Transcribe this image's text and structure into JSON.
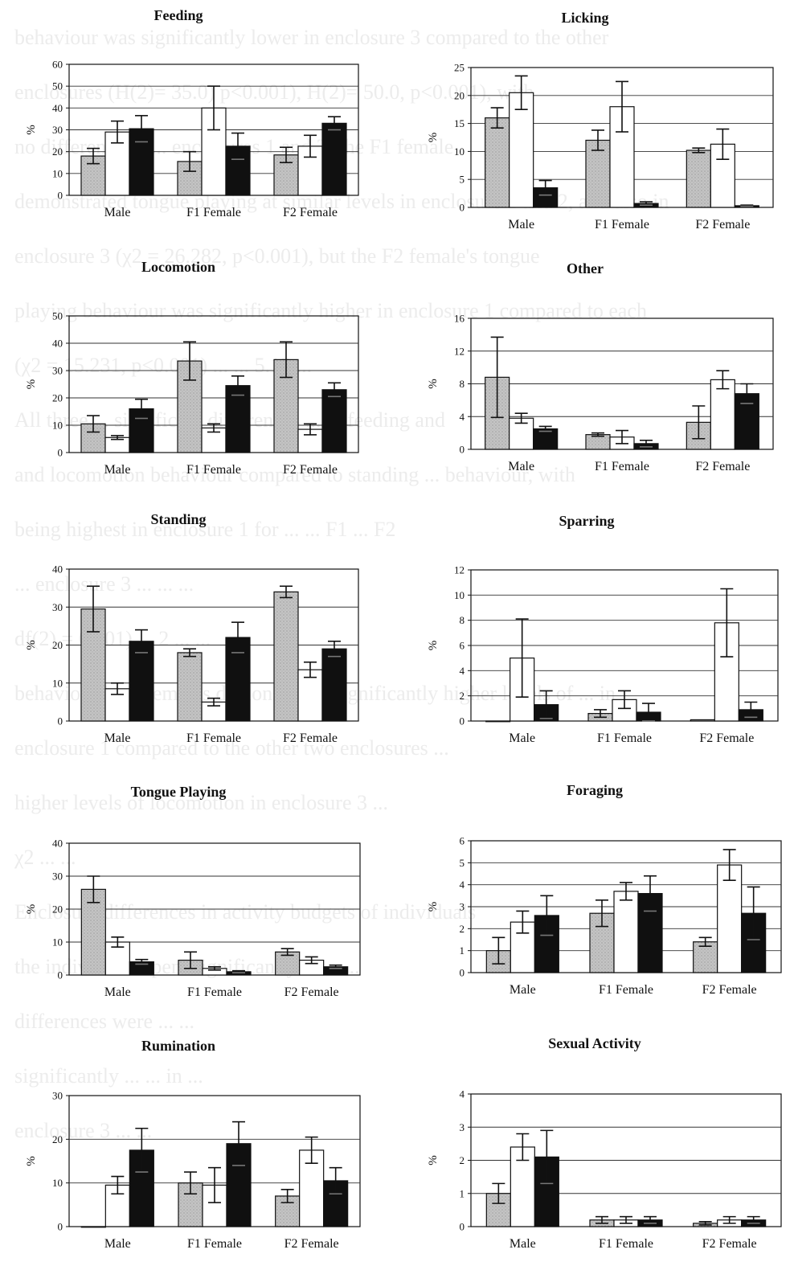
{
  "background_text": [
    "behaviour was significantly lower in enclosure 3 compared to the other",
    "enclosures (H(2)= 35.0) p<0.001), H(2)= 50.0, p<0.001), with",
    "no difference ... ... enclosures 1 and 2 The F1 female",
    "demonstrated tongue playing at similar levels in enclosure 1 and 2, and also in",
    "enclosure 3 (χ2 = 26.282, p<0.001), but the F2 female's tongue",
    "playing behaviour was significantly higher in enclosure 1 compared to each",
    "(χ2 = 15.231, p<0.001) ... ... 5.13 ...",
    "All three ... significant differences ... ... feeding and",
    "and locomotion behaviour compared to standing ... behaviour, with",
    "being highest in enclosure 1 for ... ... F1 ... F2",
    "... enclosure 3 ... ... ...",
    "df(2) = 0.001) ... 2 ... ...",
    "behaviour both females demonstrated significantly higher levels of ... in",
    "enclosure 1 compared to the other two enclosures ...",
    "higher levels of locomotion in enclosure 3 ...",
    "χ2 ... ...",
    "Enclosure differences in activity budgets of individuals",
    "the individuals spent significantly ... ... ...",
    "differences were ... ...",
    "significantly ... ... in ...",
    "enclosure 3 ... ..."
  ],
  "colors": {
    "enclosure1": "#c4c4c4",
    "enclosure2": "#ffffff",
    "enclosure3": "#101010",
    "axis": "#111111",
    "grid": "#333333"
  },
  "chart_data": [
    {
      "type": "bar",
      "title": "Feeding",
      "ylabel": "%",
      "ylim": [
        0,
        60
      ],
      "yticks": [
        0,
        10,
        20,
        30,
        40,
        50,
        60
      ],
      "grid": true,
      "categories": [
        "Male",
        "F1 Female",
        "F2 Female"
      ],
      "series": [
        {
          "values": [
            18,
            15.5,
            18.5
          ],
          "errors": [
            3.5,
            4.5,
            3.5
          ]
        },
        {
          "values": [
            29,
            40,
            22.5
          ],
          "errors": [
            5,
            10,
            5
          ]
        },
        {
          "values": [
            30.5,
            22.5,
            33
          ],
          "errors": [
            6,
            6,
            3
          ]
        }
      ]
    },
    {
      "type": "bar",
      "title": "Licking",
      "ylabel": "%",
      "ylim": [
        0,
        25
      ],
      "yticks": [
        0,
        5,
        10,
        15,
        20,
        25
      ],
      "grid": true,
      "categories": [
        "Male",
        "F1 Female",
        "F2 Female"
      ],
      "series": [
        {
          "values": [
            16,
            12,
            10.2
          ],
          "errors": [
            1.8,
            1.8,
            0.4
          ]
        },
        {
          "values": [
            20.5,
            18,
            11.3
          ],
          "errors": [
            3,
            4.5,
            2.7
          ]
        },
        {
          "values": [
            3.5,
            0.7,
            0.3
          ],
          "errors": [
            1.3,
            0.3,
            0.1
          ]
        }
      ]
    },
    {
      "type": "bar",
      "title": "Locomotion",
      "ylabel": "%",
      "ylim": [
        0,
        50
      ],
      "yticks": [
        0,
        10,
        20,
        30,
        40,
        50
      ],
      "grid": true,
      "categories": [
        "Male",
        "F1 Female",
        "F2 Female"
      ],
      "series": [
        {
          "values": [
            10.5,
            33.5,
            34
          ],
          "errors": [
            3,
            7,
            6.5
          ]
        },
        {
          "values": [
            5.5,
            9,
            8.5
          ],
          "errors": [
            0.7,
            1.5,
            2
          ]
        },
        {
          "values": [
            16,
            24.5,
            23
          ],
          "errors": [
            3.5,
            3.5,
            2.5
          ]
        }
      ]
    },
    {
      "type": "bar",
      "title": "Other",
      "ylabel": "%",
      "ylim": [
        0,
        16
      ],
      "yticks": [
        0,
        4,
        8,
        12,
        16
      ],
      "grid": true,
      "categories": [
        "Male",
        "F1 Female",
        "F2 Female"
      ],
      "series": [
        {
          "values": [
            8.8,
            1.8,
            3.3
          ],
          "errors": [
            4.9,
            0.2,
            2
          ]
        },
        {
          "values": [
            3.8,
            1.5,
            8.5
          ],
          "errors": [
            0.6,
            0.8,
            1.1
          ]
        },
        {
          "values": [
            2.5,
            0.7,
            6.8
          ],
          "errors": [
            0.3,
            0.4,
            1.2
          ]
        }
      ]
    },
    {
      "type": "bar",
      "title": "Standing",
      "ylabel": "%",
      "ylim": [
        0,
        40
      ],
      "yticks": [
        0,
        10,
        20,
        30,
        40
      ],
      "grid": true,
      "categories": [
        "Male",
        "F1 Female",
        "F2 Female"
      ],
      "series": [
        {
          "values": [
            29.5,
            18,
            34
          ],
          "errors": [
            6,
            1,
            1.5
          ]
        },
        {
          "values": [
            8.5,
            5,
            13.5
          ],
          "errors": [
            1.5,
            1,
            2
          ]
        },
        {
          "values": [
            21,
            22,
            19
          ],
          "errors": [
            3,
            4,
            2
          ]
        }
      ]
    },
    {
      "type": "bar",
      "title": "Sparring",
      "ylabel": "%",
      "ylim": [
        0,
        12
      ],
      "yticks": [
        0,
        2,
        4,
        6,
        8,
        10,
        12
      ],
      "grid": true,
      "categories": [
        "Male",
        "F1 Female",
        "F2 Female"
      ],
      "series": [
        {
          "values": [
            0,
            0.6,
            0.1
          ],
          "errors": [
            0,
            0.3,
            0
          ]
        },
        {
          "values": [
            5,
            1.7,
            7.8
          ],
          "errors": [
            3.1,
            0.7,
            2.7
          ]
        },
        {
          "values": [
            1.3,
            0.7,
            0.9
          ],
          "errors": [
            1.1,
            0.7,
            0.6
          ]
        }
      ]
    },
    {
      "type": "bar",
      "title": "Tongue Playing",
      "ylabel": "%",
      "ylim": [
        0,
        40
      ],
      "yticks": [
        0,
        10,
        20,
        30,
        40
      ],
      "grid": true,
      "categories": [
        "Male",
        "F1 Female",
        "F2 Female"
      ],
      "series": [
        {
          "values": [
            26,
            4.5,
            7
          ],
          "errors": [
            4,
            2.5,
            1
          ]
        },
        {
          "values": [
            10,
            2,
            4.5
          ],
          "errors": [
            1.5,
            0.5,
            1
          ]
        },
        {
          "values": [
            4,
            1,
            2.5
          ],
          "errors": [
            0.7,
            0.3,
            0.5
          ]
        }
      ]
    },
    {
      "type": "bar",
      "title": "Foraging",
      "ylabel": "%",
      "ylim": [
        0,
        6
      ],
      "yticks": [
        0,
        1,
        2,
        3,
        4,
        5,
        6
      ],
      "grid": true,
      "categories": [
        "Male",
        "F1 Female",
        "F2 Female"
      ],
      "series": [
        {
          "values": [
            1,
            2.7,
            1.4
          ],
          "errors": [
            0.6,
            0.6,
            0.2
          ]
        },
        {
          "values": [
            2.3,
            3.7,
            4.9
          ],
          "errors": [
            0.5,
            0.4,
            0.7
          ]
        },
        {
          "values": [
            2.6,
            3.6,
            2.7
          ],
          "errors": [
            0.9,
            0.8,
            1.2
          ]
        }
      ]
    },
    {
      "type": "bar",
      "title": "Rumination",
      "ylabel": "%",
      "ylim": [
        0,
        30
      ],
      "yticks": [
        0,
        10,
        20,
        30
      ],
      "grid": true,
      "categories": [
        "Male",
        "F1 Female",
        "F2 Female"
      ],
      "series": [
        {
          "values": [
            0,
            10,
            7
          ],
          "errors": [
            0,
            2.5,
            1.5
          ]
        },
        {
          "values": [
            9.5,
            9.5,
            17.5
          ],
          "errors": [
            2,
            4,
            3
          ]
        },
        {
          "values": [
            17.5,
            19,
            10.5
          ],
          "errors": [
            5,
            5,
            3
          ]
        }
      ]
    },
    {
      "type": "bar",
      "title": "Sexual Activity",
      "ylabel": "%",
      "ylim": [
        0,
        4
      ],
      "yticks": [
        0,
        1,
        2,
        3,
        4
      ],
      "grid": true,
      "categories": [
        "Male",
        "F1 Female",
        "F2 Female"
      ],
      "series": [
        {
          "values": [
            1,
            0.2,
            0.1
          ],
          "errors": [
            0.3,
            0.1,
            0.05
          ]
        },
        {
          "values": [
            2.4,
            0.2,
            0.2
          ],
          "errors": [
            0.4,
            0.1,
            0.1
          ]
        },
        {
          "values": [
            2.1,
            0.2,
            0.2
          ],
          "errors": [
            0.8,
            0.1,
            0.1
          ]
        }
      ]
    }
  ]
}
